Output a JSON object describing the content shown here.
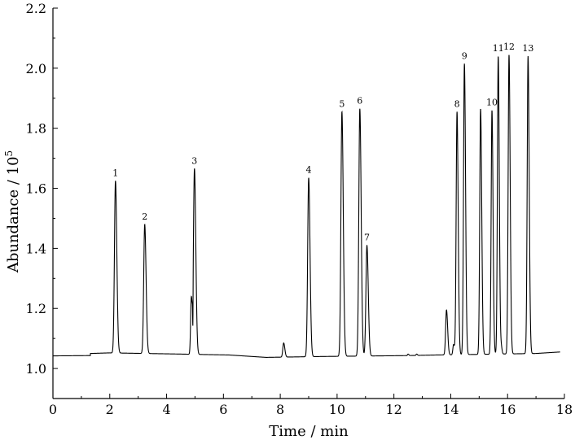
{
  "chart_data": {
    "type": "line",
    "title": "",
    "xlabel": "Time / min",
    "ylabel": {
      "prefix": "Abundance / 10",
      "exponent": "5"
    },
    "xlim": [
      0,
      18
    ],
    "ylim": [
      0.9,
      2.2
    ],
    "xticks": [
      "0",
      "2",
      "4",
      "6",
      "8",
      "10",
      "12",
      "14",
      "16",
      "18"
    ],
    "yticks": [
      "1.0",
      "1.2",
      "1.4",
      "1.6",
      "1.8",
      "2.0",
      "2.2"
    ],
    "grid": false,
    "baseline": [
      [
        0.0,
        1.042
      ],
      [
        1.3,
        1.043
      ],
      [
        1.32,
        1.05
      ],
      [
        2.0,
        1.052
      ],
      [
        4.5,
        1.048
      ],
      [
        5.6,
        1.046
      ],
      [
        6.2,
        1.045
      ],
      [
        7.0,
        1.04
      ],
      [
        7.5,
        1.037
      ],
      [
        9.5,
        1.04
      ],
      [
        12.5,
        1.043
      ],
      [
        13.5,
        1.045
      ],
      [
        15.0,
        1.047
      ],
      [
        17.0,
        1.05
      ],
      [
        17.85,
        1.055
      ]
    ],
    "peaks": [
      {
        "label": "1",
        "x": 2.2,
        "y": 1.625,
        "w": 0.035
      },
      {
        "label": "2",
        "x": 3.23,
        "y": 1.48,
        "w": 0.035
      },
      {
        "label": "3",
        "x": 4.98,
        "y": 1.665,
        "w": 0.035
      },
      {
        "label": "4",
        "x": 9.0,
        "y": 1.635,
        "w": 0.035
      },
      {
        "label": "5",
        "x": 10.17,
        "y": 1.855,
        "w": 0.035
      },
      {
        "label": "6",
        "x": 10.8,
        "y": 1.865,
        "w": 0.035
      },
      {
        "label": "7",
        "x": 11.05,
        "y": 1.41,
        "w": 0.035
      },
      {
        "label": "8",
        "x": 14.22,
        "y": 1.855,
        "w": 0.03
      },
      {
        "label": "9",
        "x": 14.48,
        "y": 2.015,
        "w": 0.03
      },
      {
        "label": "10",
        "x": 15.45,
        "y": 1.86,
        "w": 0.028
      },
      {
        "label": "11",
        "x": 15.67,
        "y": 2.04,
        "w": 0.028
      },
      {
        "label": "12",
        "x": 16.05,
        "y": 2.045,
        "w": 0.03
      },
      {
        "label": "13",
        "x": 16.72,
        "y": 2.04,
        "w": 0.03
      }
    ],
    "minor_peaks": [
      {
        "x": 4.87,
        "y": 1.235,
        "w": 0.025
      },
      {
        "x": 8.12,
        "y": 1.085,
        "w": 0.03
      },
      {
        "x": 13.85,
        "y": 1.195,
        "w": 0.03
      },
      {
        "x": 14.1,
        "y": 1.08,
        "w": 0.025
      },
      {
        "x": 15.05,
        "y": 1.865,
        "w": 0.03
      },
      {
        "x": 15.78,
        "y": 1.07,
        "w": 0.02
      },
      {
        "x": 12.5,
        "y": 1.048,
        "w": 0.02
      },
      {
        "x": 12.8,
        "y": 1.048,
        "w": 0.02
      }
    ]
  }
}
